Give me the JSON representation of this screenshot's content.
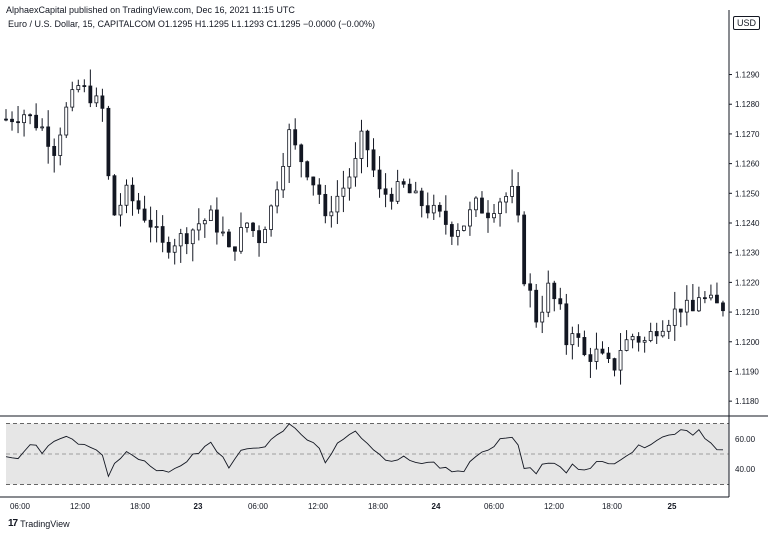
{
  "header": {
    "published": "AlphaexCapital published on TradingView.com, Dec 16, 2021 11:15 UTC",
    "symbol_line": "Euro / U.S. Dollar, 15, CAPITALCOM  O1.1295  H1.1295  L1.1293  C1.1295  −0.0000 (−0.00%)",
    "currency_badge": "USD"
  },
  "footer": {
    "logo_glyph": "17",
    "brand": "TradingView"
  },
  "colors": {
    "candle": "#131722",
    "rsi_line": "#131722",
    "rsi_band": "#e6e6e6",
    "grid": "#e0e3eb"
  },
  "chart_data": [
    {
      "type": "candlestick",
      "title": "Euro / U.S. Dollar, 15, CAPITALCOM",
      "ylim": [
        1.1175,
        1.1305
      ],
      "ytick_labels": [
        "1.1290",
        "1.1280",
        "1.1270",
        "1.1260",
        "1.1250",
        "1.1240",
        "1.1230",
        "1.1220",
        "1.1210",
        "1.1200",
        "1.1190",
        "1.1180"
      ],
      "xtick_labels": [
        "06:00",
        "12:00",
        "18:00",
        "23",
        "06:00",
        "12:00",
        "18:00",
        "24",
        "06:00",
        "12:00",
        "18:00",
        "25"
      ],
      "close_path": [
        [
          0,
          1.1275
        ],
        [
          3,
          1.1277
        ],
        [
          6,
          1.1272
        ],
        [
          8,
          1.1265
        ],
        [
          10,
          1.1278
        ],
        [
          12,
          1.1286
        ],
        [
          14,
          1.1283
        ],
        [
          16,
          1.1278
        ],
        [
          17,
          1.1255
        ],
        [
          18,
          1.1243
        ],
        [
          20,
          1.125
        ],
        [
          22,
          1.1245
        ],
        [
          24,
          1.124
        ],
        [
          26,
          1.1232
        ],
        [
          28,
          1.1234
        ],
        [
          30,
          1.1236
        ],
        [
          32,
          1.124
        ],
        [
          34,
          1.1242
        ],
        [
          36,
          1.1236
        ],
        [
          37,
          1.123
        ],
        [
          38,
          1.1233
        ],
        [
          40,
          1.124
        ],
        [
          42,
          1.1235
        ],
        [
          44,
          1.1245
        ],
        [
          46,
          1.1262
        ],
        [
          47,
          1.127
        ],
        [
          48,
          1.1265
        ],
        [
          50,
          1.1258
        ],
        [
          52,
          1.125
        ],
        [
          53,
          1.124
        ],
        [
          54,
          1.1246
        ],
        [
          56,
          1.1252
        ],
        [
          58,
          1.126
        ],
        [
          59,
          1.1268
        ],
        [
          60,
          1.1265
        ],
        [
          62,
          1.125
        ],
        [
          64,
          1.125
        ],
        [
          66,
          1.1252
        ],
        [
          68,
          1.1248
        ],
        [
          70,
          1.1245
        ],
        [
          72,
          1.1242
        ],
        [
          74,
          1.1238
        ],
        [
          76,
          1.124
        ],
        [
          78,
          1.1246
        ],
        [
          80,
          1.1244
        ],
        [
          82,
          1.1248
        ],
        [
          84,
          1.125
        ],
        [
          85,
          1.124
        ],
        [
          86,
          1.1222
        ],
        [
          87,
          1.1216
        ],
        [
          88,
          1.1208
        ],
        [
          89,
          1.1212
        ],
        [
          90,
          1.1218
        ],
        [
          92,
          1.121
        ],
        [
          93,
          1.12
        ],
        [
          94,
          1.1205
        ],
        [
          96,
          1.1195
        ],
        [
          98,
          1.1196
        ],
        [
          100,
          1.1192
        ],
        [
          101,
          1.1192
        ],
        [
          102,
          1.1198
        ],
        [
          104,
          1.1202
        ],
        [
          106,
          1.12
        ],
        [
          108,
          1.1205
        ],
        [
          110,
          1.1208
        ],
        [
          112,
          1.1212
        ],
        [
          114,
          1.121
        ],
        [
          115,
          1.1216
        ],
        [
          116,
          1.1214
        ],
        [
          118,
          1.1212
        ]
      ],
      "last_close": 1.1295
    },
    {
      "type": "line",
      "title": "RSI",
      "ylim": [
        25,
        75
      ],
      "band": [
        30,
        70
      ],
      "midline": 50,
      "ytick_labels": [
        "60.00",
        "40.00"
      ],
      "path": [
        [
          0,
          50
        ],
        [
          2,
          47
        ],
        [
          4,
          56
        ],
        [
          6,
          52
        ],
        [
          8,
          60
        ],
        [
          10,
          63
        ],
        [
          12,
          58
        ],
        [
          14,
          56
        ],
        [
          16,
          50
        ],
        [
          17,
          34
        ],
        [
          18,
          44
        ],
        [
          20,
          50
        ],
        [
          22,
          47
        ],
        [
          24,
          42
        ],
        [
          26,
          38
        ],
        [
          28,
          40
        ],
        [
          30,
          45
        ],
        [
          32,
          52
        ],
        [
          34,
          58
        ],
        [
          36,
          47
        ],
        [
          37,
          40
        ],
        [
          38,
          48
        ],
        [
          40,
          55
        ],
        [
          42,
          53
        ],
        [
          44,
          60
        ],
        [
          46,
          67
        ],
        [
          47,
          70
        ],
        [
          48,
          66
        ],
        [
          50,
          61
        ],
        [
          52,
          54
        ],
        [
          53,
          44
        ],
        [
          54,
          52
        ],
        [
          56,
          60
        ],
        [
          58,
          64
        ],
        [
          59,
          62
        ],
        [
          60,
          55
        ],
        [
          62,
          48
        ],
        [
          64,
          46
        ],
        [
          66,
          47
        ],
        [
          68,
          43
        ],
        [
          70,
          45
        ],
        [
          72,
          42
        ],
        [
          74,
          38
        ],
        [
          76,
          39
        ],
        [
          78,
          50
        ],
        [
          80,
          53
        ],
        [
          82,
          60
        ],
        [
          84,
          63
        ],
        [
          85,
          54
        ],
        [
          86,
          40
        ],
        [
          87,
          42
        ],
        [
          88,
          38
        ],
        [
          90,
          45
        ],
        [
          92,
          41
        ],
        [
          93,
          38
        ],
        [
          94,
          42
        ],
        [
          96,
          41
        ],
        [
          98,
          44
        ],
        [
          100,
          43
        ],
        [
          102,
          48
        ],
        [
          104,
          52
        ],
        [
          106,
          56
        ],
        [
          108,
          60
        ],
        [
          110,
          62
        ],
        [
          112,
          67
        ],
        [
          114,
          64
        ],
        [
          115,
          66
        ],
        [
          116,
          62
        ],
        [
          118,
          52
        ]
      ]
    }
  ]
}
